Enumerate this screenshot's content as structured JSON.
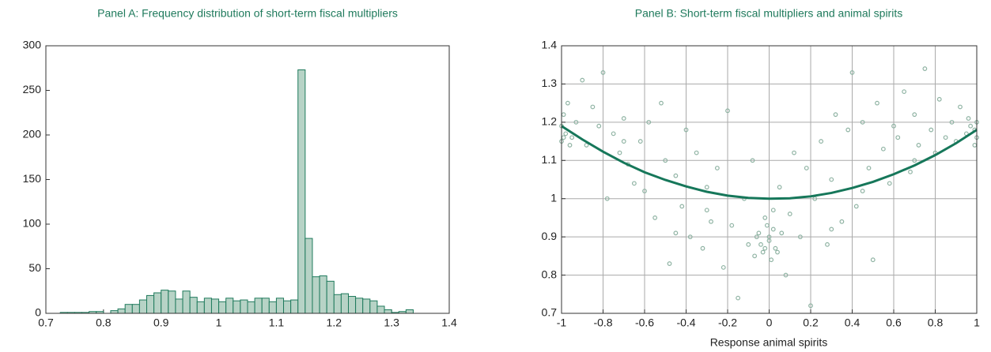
{
  "chart_data": [
    {
      "type": "histogram",
      "title": "Panel A: Frequency distribution of short-term fiscal multipliers",
      "bins": [
        0.7,
        0.7125,
        0.725,
        0.7375,
        0.75,
        0.7625,
        0.775,
        0.7875,
        0.8,
        0.8125,
        0.825,
        0.8375,
        0.85,
        0.8625,
        0.875,
        0.8875,
        0.9,
        0.9125,
        0.925,
        0.9375,
        0.95,
        0.9625,
        0.975,
        0.9875,
        1.0,
        1.0125,
        1.025,
        1.0375,
        1.05,
        1.0625,
        1.075,
        1.0875,
        1.1,
        1.1125,
        1.125,
        1.1375,
        1.15,
        1.1625,
        1.175,
        1.1875,
        1.2,
        1.2125,
        1.225,
        1.2375,
        1.25,
        1.2625,
        1.275,
        1.2875,
        1.3,
        1.3125,
        1.325,
        1.3375
      ],
      "values": [
        0,
        0,
        1,
        1,
        1,
        1,
        2,
        2,
        0,
        3,
        5,
        10,
        10,
        15,
        20,
        23,
        26,
        25,
        16,
        25,
        18,
        13,
        17,
        16,
        13,
        17,
        14,
        15,
        13,
        17,
        17,
        13,
        17,
        14,
        15,
        273,
        84,
        41,
        42,
        36,
        21,
        22,
        19,
        17,
        16,
        14,
        8,
        4,
        1,
        2,
        4
      ],
      "color": "#b7d3c6",
      "edge_color": "#1f7a5c",
      "xlim": [
        0.7,
        1.4
      ],
      "xticks": [
        0.7,
        0.8,
        0.9,
        1,
        1.1,
        1.2,
        1.3,
        1.4
      ],
      "ylim": [
        0,
        300
      ],
      "yticks": [
        0,
        50,
        100,
        150,
        200,
        250,
        300
      ],
      "grid": false
    },
    {
      "type": "scatter",
      "title": "Panel B: Short-term fiscal multipliers and animal spirits",
      "x_label": "Response animal spirits",
      "x": [
        -1,
        -0.99,
        -0.98,
        -0.97,
        -0.95,
        -0.93,
        -0.9,
        -0.88,
        -0.85,
        -0.82,
        -0.8,
        -0.78,
        -0.75,
        -0.72,
        -0.7,
        -0.68,
        -0.65,
        -0.62,
        -0.6,
        -0.58,
        -0.55,
        -0.52,
        -0.5,
        -0.48,
        -0.45,
        -0.42,
        -0.4,
        -0.38,
        -0.35,
        -0.32,
        -0.3,
        -0.28,
        -0.25,
        -0.22,
        -0.2,
        -0.18,
        -0.15,
        -0.12,
        -0.1,
        -0.08,
        -0.05,
        -0.03,
        -0.02,
        0,
        0.01,
        0.02,
        0.03,
        0.05,
        0.08,
        0.1,
        0.12,
        0.15,
        0.18,
        0.2,
        0.22,
        0.25,
        0.28,
        0.3,
        0.32,
        0.35,
        0.38,
        0.4,
        0.42,
        0.45,
        0.48,
        0.5,
        0.52,
        0.55,
        0.58,
        0.6,
        0.62,
        0.65,
        0.68,
        0.7,
        0.72,
        0.75,
        0.78,
        0.8,
        0.82,
        0.85,
        0.88,
        0.9,
        0.92,
        0.95,
        0.97,
        0.99,
        1,
        -0.06,
        -0.04,
        -0.01,
        0.04,
        0.06,
        -0.07,
        0,
        -0.02,
        0.02,
        -1,
        -0.99,
        1,
        0.99,
        -0.96,
        0.96,
        -0.3,
        0.3,
        -0.45,
        0.45,
        -0.7,
        0.7
      ],
      "values": [
        1.15,
        1.22,
        1.17,
        1.25,
        1.16,
        1.2,
        1.31,
        1.14,
        1.24,
        1.19,
        1.33,
        1.0,
        1.17,
        1.12,
        1.21,
        1.09,
        1.04,
        1.15,
        1.02,
        1.2,
        0.95,
        1.25,
        1.1,
        0.83,
        1.06,
        0.98,
        1.18,
        0.9,
        1.12,
        0.87,
        1.03,
        0.94,
        1.08,
        0.82,
        1.23,
        0.93,
        0.74,
        1.0,
        0.88,
        1.1,
        0.91,
        0.86,
        0.95,
        0.89,
        0.84,
        0.92,
        0.87,
        1.03,
        0.8,
        0.96,
        1.12,
        0.9,
        1.08,
        0.72,
        1.0,
        1.15,
        0.88,
        1.05,
        1.22,
        0.94,
        1.18,
        1.33,
        0.98,
        1.2,
        1.08,
        0.84,
        1.25,
        1.13,
        1.04,
        1.19,
        1.16,
        1.28,
        1.07,
        1.22,
        1.14,
        1.34,
        1.18,
        1.12,
        1.26,
        1.16,
        1.2,
        1.15,
        1.24,
        1.17,
        1.19,
        1.14,
        1.16,
        0.9,
        0.88,
        0.93,
        0.86,
        0.91,
        0.85,
        0.9,
        0.87,
        0.97,
        1.19,
        1.16,
        1.2,
        1.18,
        1.14,
        1.21,
        0.97,
        0.92,
        0.91,
        1.02,
        1.15,
        1.1
      ],
      "color": "#8fb3a3",
      "fit_x": [
        -1,
        -0.9,
        -0.8,
        -0.7,
        -0.6,
        -0.5,
        -0.4,
        -0.3,
        -0.2,
        -0.1,
        0,
        0.1,
        0.2,
        0.3,
        0.4,
        0.5,
        0.6,
        0.7,
        0.8,
        0.9,
        1
      ],
      "fit_values": [
        1.19,
        1.155,
        1.123,
        1.094,
        1.069,
        1.049,
        1.032,
        1.018,
        1.008,
        1.002,
        1.0,
        1.001,
        1.006,
        1.015,
        1.028,
        1.044,
        1.064,
        1.087,
        1.114,
        1.145,
        1.18
      ],
      "fit_color": "#16775a",
      "xlim": [
        -1,
        1
      ],
      "xticks": [
        -1,
        -0.8,
        -0.6,
        -0.4,
        -0.2,
        0,
        0.2,
        0.4,
        0.6,
        0.8,
        1
      ],
      "ylim": [
        0.7,
        1.4
      ],
      "yticks": [
        0.7,
        0.8,
        0.9,
        1,
        1.1,
        1.2,
        1.3,
        1.4
      ],
      "grid": true
    }
  ]
}
